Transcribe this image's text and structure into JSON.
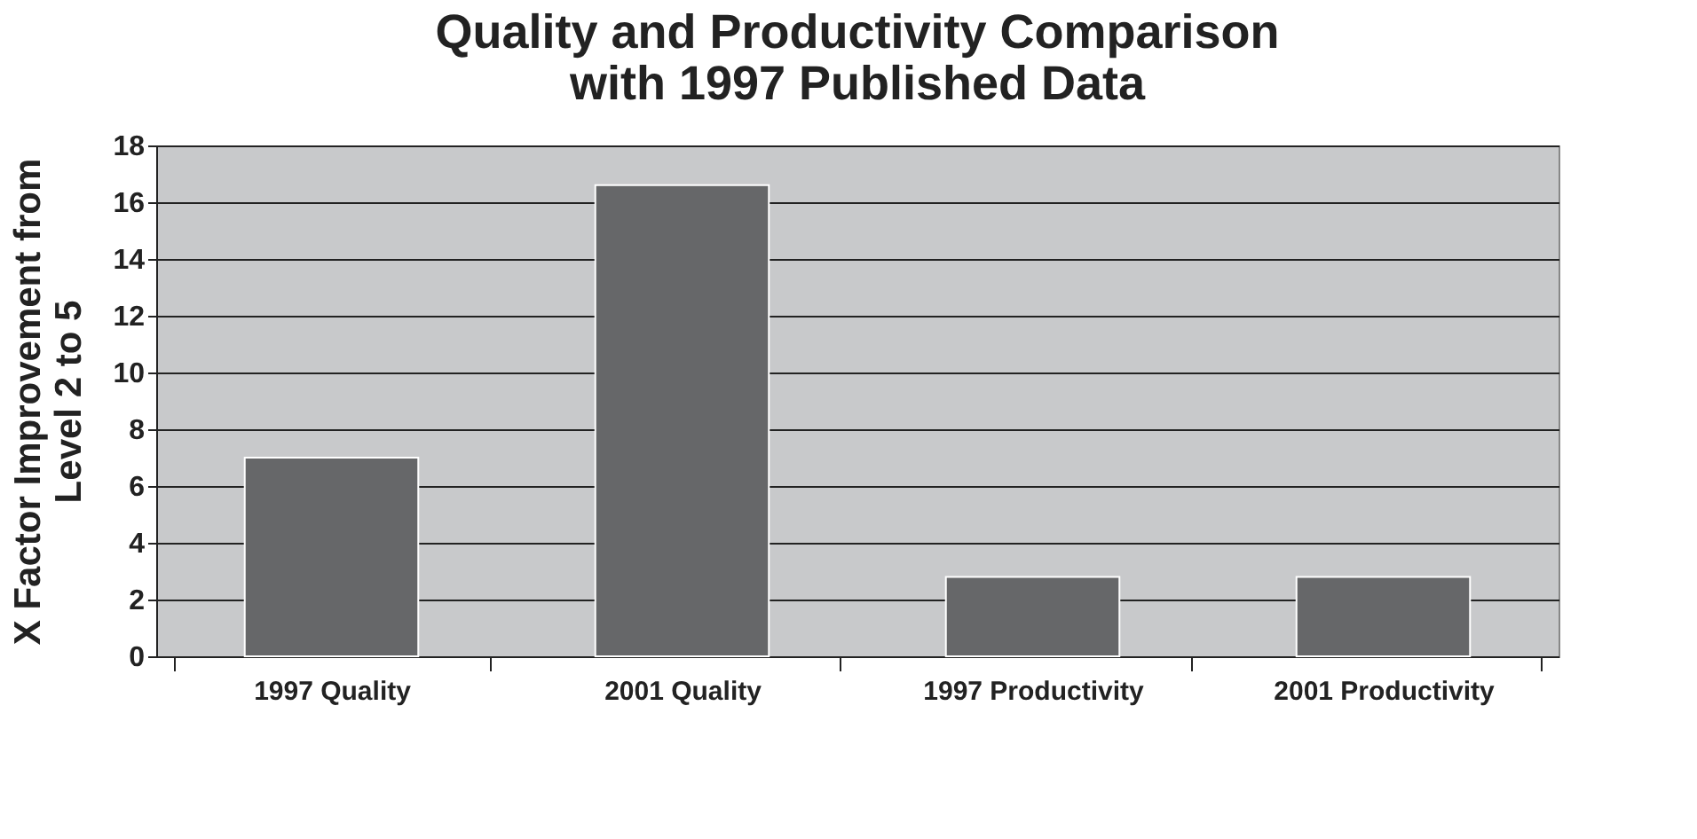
{
  "chart_data": {
    "type": "bar",
    "title": [
      "Quality and Productivity Comparison",
      "with 1997 Published Data"
    ],
    "ylabel": [
      "X Factor Improvement from",
      "Level 2 to 5"
    ],
    "categories": [
      "1997 Quality",
      "2001 Quality",
      "1997 Productivity",
      "2001 Productivity"
    ],
    "values": [
      7,
      16.6,
      2.8,
      2.8
    ],
    "color": "#666769",
    "ylim": [
      0,
      18
    ],
    "yticks": [
      0,
      2,
      4,
      6,
      8,
      10,
      12,
      14,
      16,
      18
    ],
    "grid": "y"
  }
}
